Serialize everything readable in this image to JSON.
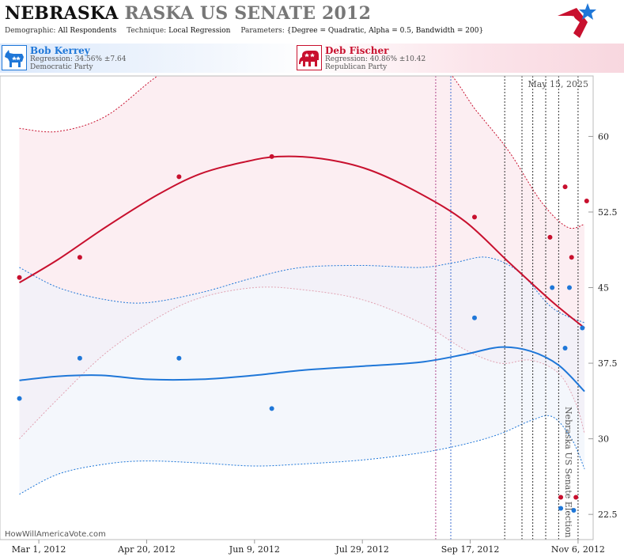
{
  "header": {
    "title_state": "NEBRASKA",
    "title_rest": "RASKA US SENATE 2012",
    "params": [
      {
        "key": "Demographic:",
        "value": "All Respondents"
      },
      {
        "key": "Technique:",
        "value": "Local Regression"
      },
      {
        "key": "Parameters:",
        "value": "{Degree = Quadratic, Alpha = 0.5, Bandwidth = 200}"
      }
    ]
  },
  "legend": {
    "dem": {
      "name": "Bob Kerrey",
      "regression": "Regression: 34.56% ±7.64",
      "party": "Democratic Party",
      "icon": "donkey-icon",
      "color": "#1f77d8"
    },
    "rep": {
      "name": "Deb Fischer",
      "regression": "Regression: 40.86% ±10.42",
      "party": "Republican Party",
      "icon": "elephant-icon",
      "color": "#c8102e"
    }
  },
  "date_stamp": "May 15, 2025",
  "source": "HowWillAmericaVote.com",
  "event_label": "Nebraska US Senate Election",
  "chart_data": {
    "type": "scatter",
    "xlabels": [
      "Mar 1, 2012",
      "Apr 20, 2012",
      "Jun 9, 2012",
      "Jul 29, 2012",
      "Sep 17, 2012",
      "Nov 6, 2012"
    ],
    "x_tick_dates": [
      "2012-03-01",
      "2012-04-20",
      "2012-06-09",
      "2012-07-29",
      "2012-09-17",
      "2012-11-06"
    ],
    "xlim": [
      "2012-02-12",
      "2012-11-13"
    ],
    "ylim": [
      20,
      66
    ],
    "yticks": [
      22.5,
      30,
      37.5,
      45,
      52.5,
      60
    ],
    "grid": false,
    "y_axis_side": "right",
    "event_lines": [
      {
        "date": "2012-09-01",
        "color": "#b04a8c"
      },
      {
        "date": "2012-09-08",
        "color": "#3f6fd1"
      },
      {
        "date": "2012-10-03",
        "color": "#333333"
      },
      {
        "date": "2012-10-11",
        "color": "#333333"
      },
      {
        "date": "2012-10-16",
        "color": "#333333"
      },
      {
        "date": "2012-10-22",
        "color": "#333333"
      },
      {
        "date": "2012-10-28",
        "color": "#333333"
      },
      {
        "date": "2012-11-06",
        "color": "#333333"
      }
    ],
    "series": [
      {
        "name": "Deb Fischer",
        "color": "#c8102e",
        "band_fill": "#fbe8ee",
        "points": [
          {
            "x": "2012-02-21",
            "y": 46
          },
          {
            "x": "2012-03-20",
            "y": 48
          },
          {
            "x": "2012-05-05",
            "y": 56
          },
          {
            "x": "2012-06-17",
            "y": 58
          },
          {
            "x": "2012-09-19",
            "y": 52
          },
          {
            "x": "2012-10-24",
            "y": 50
          },
          {
            "x": "2012-10-31",
            "y": 55
          },
          {
            "x": "2012-11-03",
            "y": 48
          },
          {
            "x": "2012-11-05",
            "y": 24.2
          },
          {
            "x": "2012-11-10",
            "y": 53.6
          },
          {
            "x": "2012-10-29",
            "y": 24.2
          }
        ],
        "fit": [
          {
            "x": "2012-02-21",
            "y": 45.5
          },
          {
            "x": "2012-03-10",
            "y": 47.8
          },
          {
            "x": "2012-04-01",
            "y": 51.0
          },
          {
            "x": "2012-04-25",
            "y": 54.2
          },
          {
            "x": "2012-05-15",
            "y": 56.3
          },
          {
            "x": "2012-06-05",
            "y": 57.5
          },
          {
            "x": "2012-06-20",
            "y": 58.0
          },
          {
            "x": "2012-07-10",
            "y": 57.8
          },
          {
            "x": "2012-08-01",
            "y": 56.7
          },
          {
            "x": "2012-08-25",
            "y": 54.3
          },
          {
            "x": "2012-09-15",
            "y": 51.5
          },
          {
            "x": "2012-10-05",
            "y": 47.5
          },
          {
            "x": "2012-10-25",
            "y": 43.6
          },
          {
            "x": "2012-11-09",
            "y": 41.0
          }
        ],
        "upper": [
          {
            "x": "2012-02-21",
            "y": 60.8
          },
          {
            "x": "2012-03-10",
            "y": 60.5
          },
          {
            "x": "2012-04-01",
            "y": 62.0
          },
          {
            "x": "2012-04-25",
            "y": 66.0
          },
          {
            "x": "2012-05-15",
            "y": 68.5
          },
          {
            "x": "2012-06-20",
            "y": 70.0
          },
          {
            "x": "2012-07-29",
            "y": 69.5
          },
          {
            "x": "2012-09-01",
            "y": 67.5
          },
          {
            "x": "2012-09-20",
            "y": 62.5
          },
          {
            "x": "2012-10-05",
            "y": 58.5
          },
          {
            "x": "2012-10-20",
            "y": 53.5
          },
          {
            "x": "2012-11-01",
            "y": 51.0
          },
          {
            "x": "2012-11-09",
            "y": 51.3
          }
        ],
        "lower": [
          {
            "x": "2012-02-21",
            "y": 30.0
          },
          {
            "x": "2012-03-10",
            "y": 34.0
          },
          {
            "x": "2012-04-01",
            "y": 38.5
          },
          {
            "x": "2012-04-25",
            "y": 42.0
          },
          {
            "x": "2012-05-15",
            "y": 44.0
          },
          {
            "x": "2012-06-09",
            "y": 45.0
          },
          {
            "x": "2012-07-01",
            "y": 44.8
          },
          {
            "x": "2012-07-29",
            "y": 43.8
          },
          {
            "x": "2012-08-25",
            "y": 41.5
          },
          {
            "x": "2012-09-15",
            "y": 38.8
          },
          {
            "x": "2012-10-01",
            "y": 37.5
          },
          {
            "x": "2012-10-15",
            "y": 37.8
          },
          {
            "x": "2012-10-28",
            "y": 36.5
          },
          {
            "x": "2012-11-05",
            "y": 33.5
          },
          {
            "x": "2012-11-09",
            "y": 30.5
          }
        ]
      },
      {
        "name": "Bob Kerrey",
        "color": "#1f77d8",
        "band_fill": "#eef3fb",
        "points": [
          {
            "x": "2012-02-21",
            "y": 34
          },
          {
            "x": "2012-03-20",
            "y": 38
          },
          {
            "x": "2012-05-05",
            "y": 38
          },
          {
            "x": "2012-06-17",
            "y": 33
          },
          {
            "x": "2012-09-19",
            "y": 42
          },
          {
            "x": "2012-10-25",
            "y": 45
          },
          {
            "x": "2012-10-31",
            "y": 39
          },
          {
            "x": "2012-11-02",
            "y": 45
          },
          {
            "x": "2012-11-08",
            "y": 41
          },
          {
            "x": "2012-10-29",
            "y": 23.1
          },
          {
            "x": "2012-11-04",
            "y": 22.9
          }
        ],
        "fit": [
          {
            "x": "2012-02-21",
            "y": 35.8
          },
          {
            "x": "2012-03-10",
            "y": 36.2
          },
          {
            "x": "2012-03-30",
            "y": 36.3
          },
          {
            "x": "2012-04-20",
            "y": 35.9
          },
          {
            "x": "2012-05-15",
            "y": 35.9
          },
          {
            "x": "2012-06-09",
            "y": 36.3
          },
          {
            "x": "2012-07-01",
            "y": 36.8
          },
          {
            "x": "2012-07-29",
            "y": 37.2
          },
          {
            "x": "2012-08-25",
            "y": 37.6
          },
          {
            "x": "2012-09-15",
            "y": 38.4
          },
          {
            "x": "2012-10-01",
            "y": 39.1
          },
          {
            "x": "2012-10-15",
            "y": 38.7
          },
          {
            "x": "2012-10-28",
            "y": 37.3
          },
          {
            "x": "2012-11-09",
            "y": 34.7
          }
        ],
        "upper": [
          {
            "x": "2012-02-21",
            "y": 47.0
          },
          {
            "x": "2012-03-10",
            "y": 45.0
          },
          {
            "x": "2012-04-01",
            "y": 43.8
          },
          {
            "x": "2012-04-20",
            "y": 43.5
          },
          {
            "x": "2012-05-15",
            "y": 44.5
          },
          {
            "x": "2012-06-09",
            "y": 46.0
          },
          {
            "x": "2012-07-01",
            "y": 47.0
          },
          {
            "x": "2012-07-29",
            "y": 47.2
          },
          {
            "x": "2012-08-25",
            "y": 47.0
          },
          {
            "x": "2012-09-10",
            "y": 47.5
          },
          {
            "x": "2012-09-25",
            "y": 48.0
          },
          {
            "x": "2012-10-10",
            "y": 46.5
          },
          {
            "x": "2012-10-25",
            "y": 43.0
          },
          {
            "x": "2012-11-09",
            "y": 41.5
          }
        ],
        "lower": [
          {
            "x": "2012-02-21",
            "y": 24.5
          },
          {
            "x": "2012-03-10",
            "y": 26.5
          },
          {
            "x": "2012-04-01",
            "y": 27.5
          },
          {
            "x": "2012-04-20",
            "y": 27.8
          },
          {
            "x": "2012-05-15",
            "y": 27.6
          },
          {
            "x": "2012-06-09",
            "y": 27.3
          },
          {
            "x": "2012-07-01",
            "y": 27.5
          },
          {
            "x": "2012-07-29",
            "y": 27.9
          },
          {
            "x": "2012-08-25",
            "y": 28.6
          },
          {
            "x": "2012-09-15",
            "y": 29.5
          },
          {
            "x": "2012-10-01",
            "y": 30.5
          },
          {
            "x": "2012-10-15",
            "y": 31.8
          },
          {
            "x": "2012-10-25",
            "y": 32.2
          },
          {
            "x": "2012-11-03",
            "y": 30.0
          },
          {
            "x": "2012-11-09",
            "y": 27.0
          }
        ]
      }
    ]
  }
}
